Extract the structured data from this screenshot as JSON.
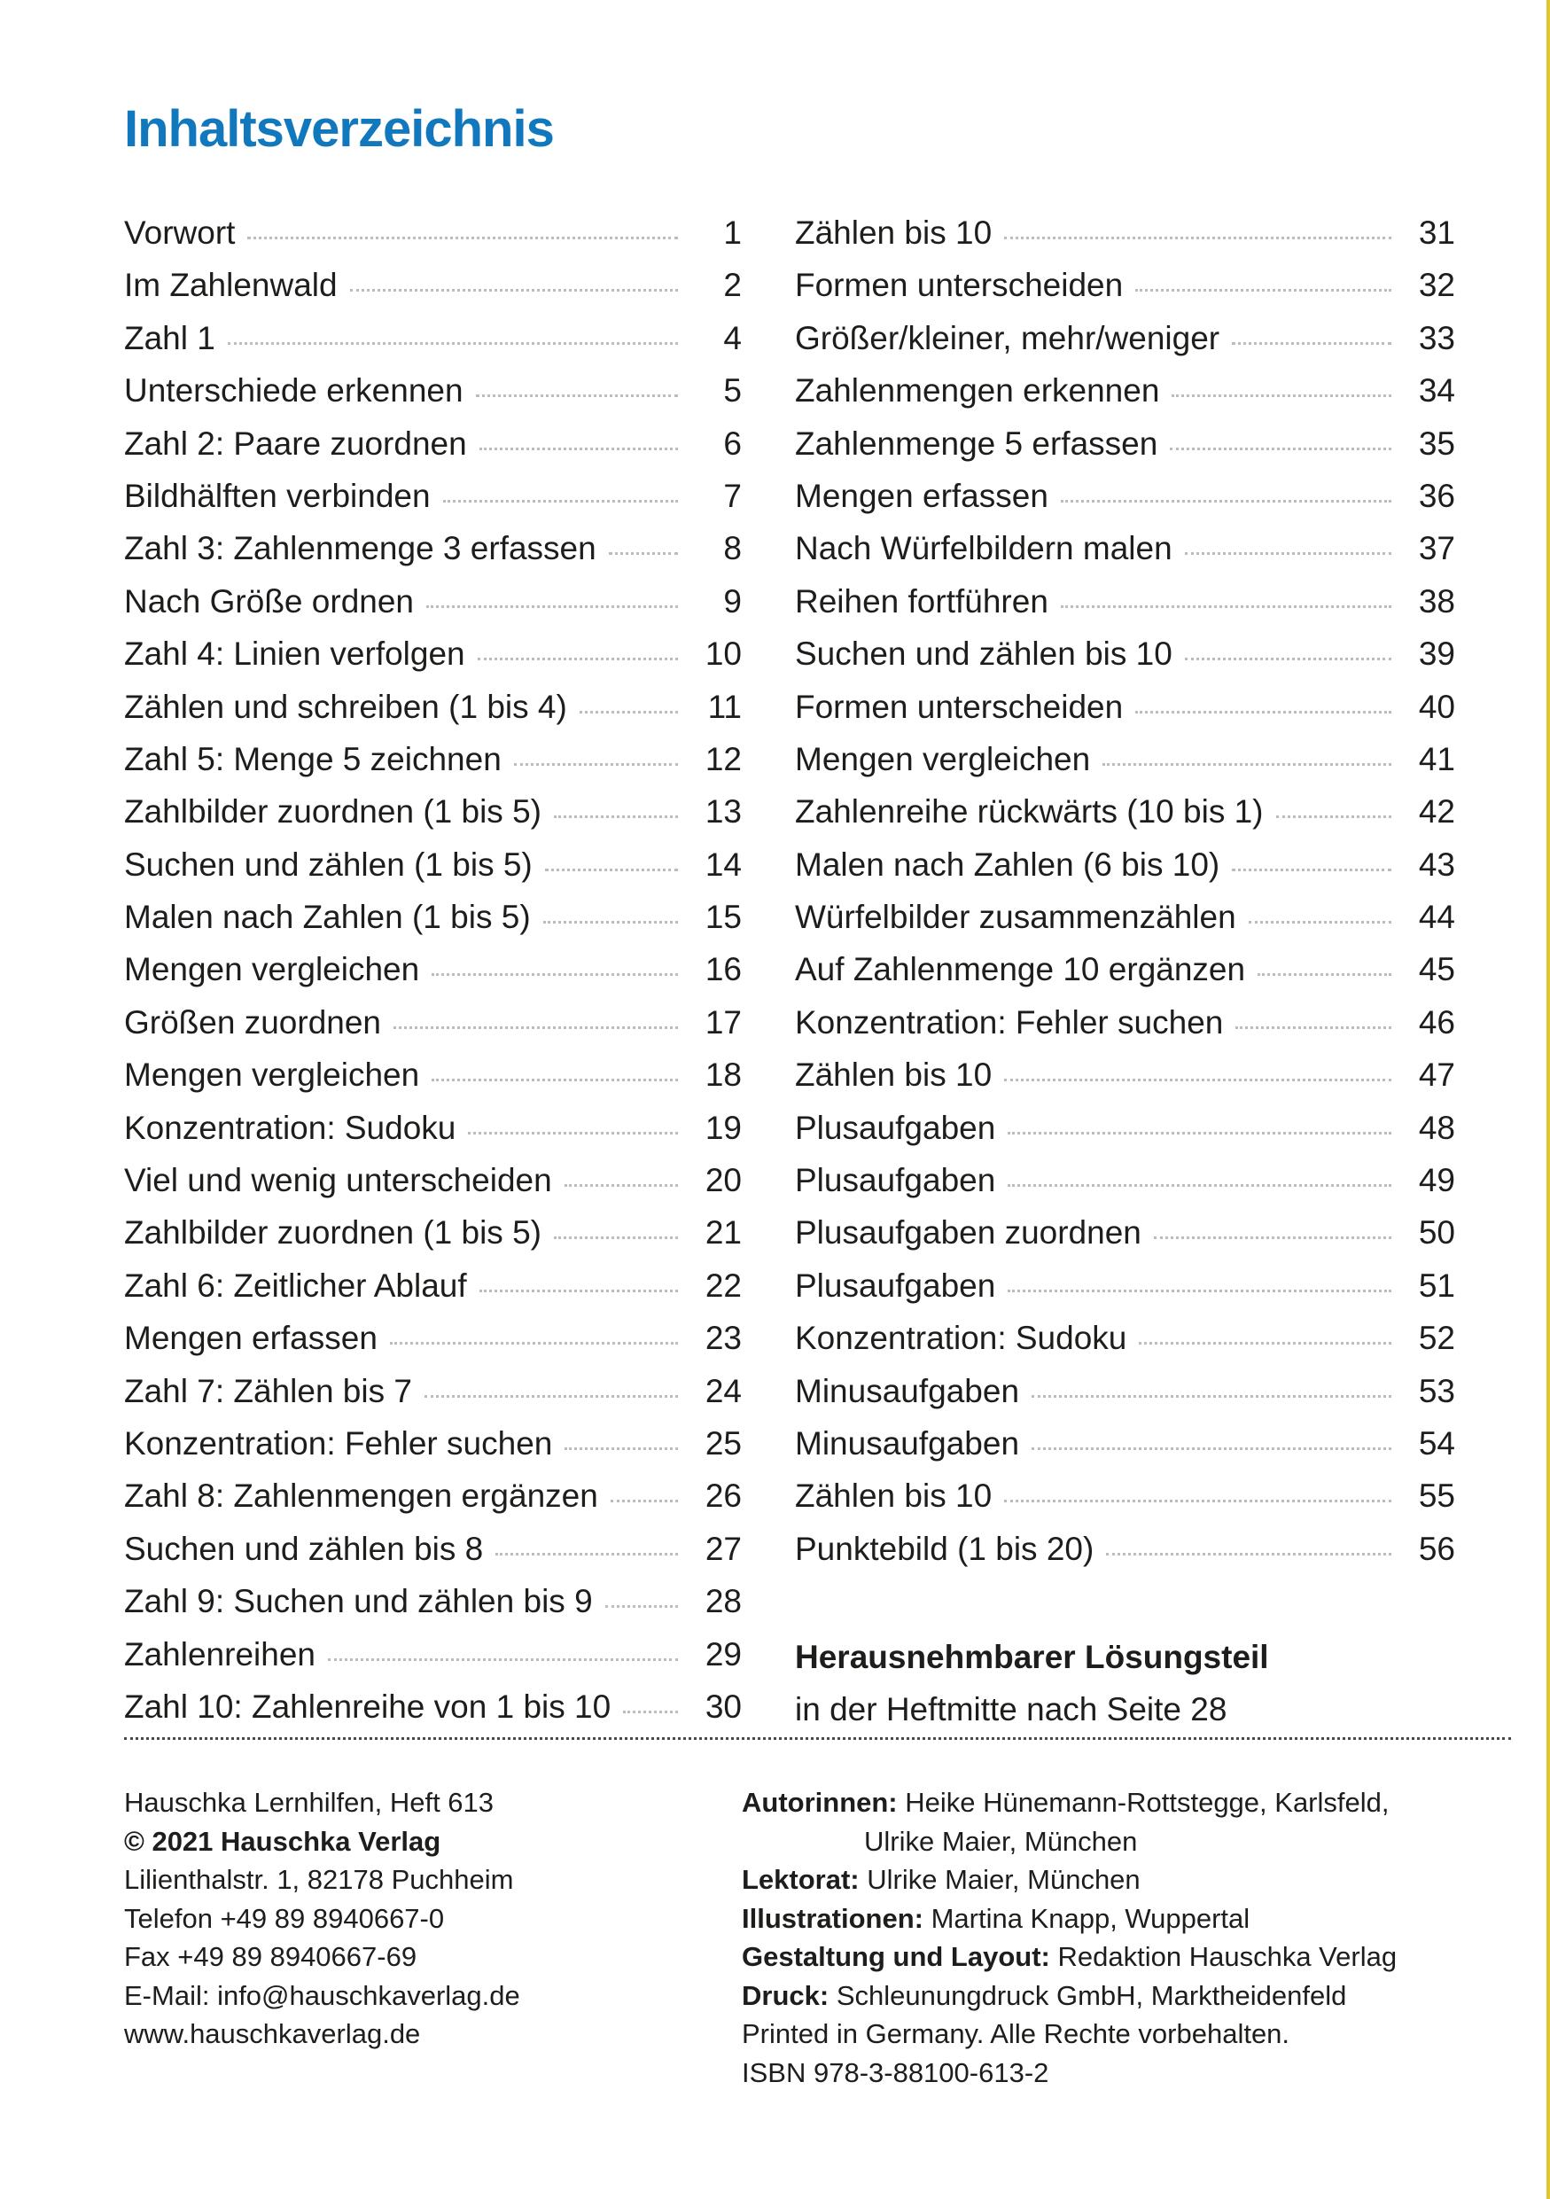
{
  "page": {
    "title": "Inhaltsverzeichnis",
    "title_color": "#1278bd",
    "edge_stripe_color": "#e3c431"
  },
  "toc": {
    "left": [
      {
        "label": "Vorwort",
        "page": "1"
      },
      {
        "label": "Im Zahlenwald",
        "page": "2"
      },
      {
        "label": "Zahl 1",
        "page": "4"
      },
      {
        "label": "Unterschiede erkennen",
        "page": "5"
      },
      {
        "label": "Zahl 2: Paare zuordnen",
        "page": "6"
      },
      {
        "label": "Bildhälften verbinden",
        "page": "7"
      },
      {
        "label": "Zahl 3: Zahlenmenge 3 erfassen",
        "page": "8"
      },
      {
        "label": "Nach Größe ordnen",
        "page": "9"
      },
      {
        "label": "Zahl 4: Linien verfolgen",
        "page": "10"
      },
      {
        "label": "Zählen und schreiben (1 bis 4)",
        "page": "11"
      },
      {
        "label": "Zahl 5: Menge 5 zeichnen",
        "page": "12"
      },
      {
        "label": "Zahlbilder zuordnen (1 bis 5)",
        "page": "13"
      },
      {
        "label": "Suchen und zählen (1 bis 5)",
        "page": "14"
      },
      {
        "label": "Malen nach Zahlen (1 bis 5)",
        "page": "15"
      },
      {
        "label": "Mengen vergleichen",
        "page": "16"
      },
      {
        "label": "Größen zuordnen",
        "page": "17"
      },
      {
        "label": "Mengen vergleichen",
        "page": "18"
      },
      {
        "label": "Konzentration: Sudoku",
        "page": "19"
      },
      {
        "label": "Viel und wenig unterscheiden",
        "page": "20"
      },
      {
        "label": "Zahlbilder zuordnen (1 bis 5)",
        "page": "21"
      },
      {
        "label": "Zahl 6: Zeitlicher Ablauf",
        "page": "22"
      },
      {
        "label": "Mengen erfassen",
        "page": "23"
      },
      {
        "label": "Zahl 7: Zählen bis 7",
        "page": "24"
      },
      {
        "label": "Konzentration: Fehler suchen",
        "page": "25"
      },
      {
        "label": "Zahl 8: Zahlenmengen ergänzen",
        "page": "26"
      },
      {
        "label": "Suchen und zählen bis 8",
        "page": "27"
      },
      {
        "label": "Zahl 9: Suchen und zählen bis 9",
        "page": "28"
      },
      {
        "label": "Zahlenreihen",
        "page": "29"
      },
      {
        "label": "Zahl 10: Zahlenreihe von 1 bis 10",
        "page": "30"
      }
    ],
    "right": [
      {
        "label": "Zählen bis 10",
        "page": "31"
      },
      {
        "label": "Formen unterscheiden",
        "page": "32"
      },
      {
        "label": "Größer/kleiner, mehr/weniger",
        "page": "33"
      },
      {
        "label": "Zahlenmengen erkennen",
        "page": "34"
      },
      {
        "label": "Zahlenmenge 5 erfassen",
        "page": "35"
      },
      {
        "label": "Mengen erfassen",
        "page": "36"
      },
      {
        "label": "Nach Würfelbildern malen",
        "page": "37"
      },
      {
        "label": "Reihen fortführen",
        "page": "38"
      },
      {
        "label": "Suchen und zählen bis 10",
        "page": "39"
      },
      {
        "label": "Formen unterscheiden",
        "page": "40"
      },
      {
        "label": "Mengen vergleichen",
        "page": "41"
      },
      {
        "label": "Zahlenreihe rückwärts (10 bis 1)",
        "page": "42"
      },
      {
        "label": "Malen nach Zahlen (6 bis 10)",
        "page": "43"
      },
      {
        "label": "Würfelbilder zusammenzählen",
        "page": "44"
      },
      {
        "label": "Auf Zahlenmenge 10 ergänzen",
        "page": "45"
      },
      {
        "label": "Konzentration: Fehler suchen",
        "page": "46"
      },
      {
        "label": "Zählen bis 10",
        "page": "47"
      },
      {
        "label": "Plusaufgaben",
        "page": "48"
      },
      {
        "label": "Plusaufgaben",
        "page": "49"
      },
      {
        "label": "Plusaufgaben zuordnen",
        "page": "50"
      },
      {
        "label": "Plusaufgaben",
        "page": "51"
      },
      {
        "label": "Konzentration: Sudoku",
        "page": "52"
      },
      {
        "label": "Minusaufgaben",
        "page": "53"
      },
      {
        "label": "Minusaufgaben",
        "page": "54"
      },
      {
        "label": "Zählen bis 10",
        "page": "55"
      },
      {
        "label": "Punktebild (1 bis 20)",
        "page": "56"
      }
    ],
    "note_bold": "Herausnehmbarer Lösungsteil",
    "note_text": "in der Heftmitte nach Seite 28"
  },
  "footer": {
    "left": [
      {
        "text": "Hauschka Lernhilfen, Heft 613",
        "bold": false
      },
      {
        "text": "© 2021 Hauschka Verlag",
        "bold": true
      },
      {
        "text": "Lilienthalstr. 1, 82178 Puchheim",
        "bold": false
      },
      {
        "text": "Telefon +49 89 8940667-0",
        "bold": false
      },
      {
        "text": "Fax +49 89 8940667-69",
        "bold": false
      },
      {
        "text": "E-Mail: info@hauschkaverlag.de",
        "bold": false
      },
      {
        "text": "www.hauschkaverlag.de",
        "bold": false
      }
    ],
    "right": [
      {
        "label": "Autorinnen:",
        "text": "Heike Hünemann-Rottstegge, Karlsfeld,",
        "indent": false
      },
      {
        "label": "",
        "text": "Ulrike Maier, München",
        "indent": true
      },
      {
        "label": "Lektorat:",
        "text": "Ulrike Maier, München",
        "indent": false
      },
      {
        "label": "Illustrationen:",
        "text": "Martina Knapp, Wuppertal",
        "indent": false
      },
      {
        "label": "Gestaltung und Layout:",
        "text": "Redaktion Hauschka Verlag",
        "indent": false
      },
      {
        "label": "Druck:",
        "text": "Schleunungdruck GmbH, Marktheidenfeld",
        "indent": false
      },
      {
        "label": "",
        "text": "Printed in Germany. Alle Rechte vorbehalten.",
        "indent": false
      },
      {
        "label": "",
        "text": "ISBN 978-3-88100-613-2",
        "indent": false
      }
    ]
  }
}
